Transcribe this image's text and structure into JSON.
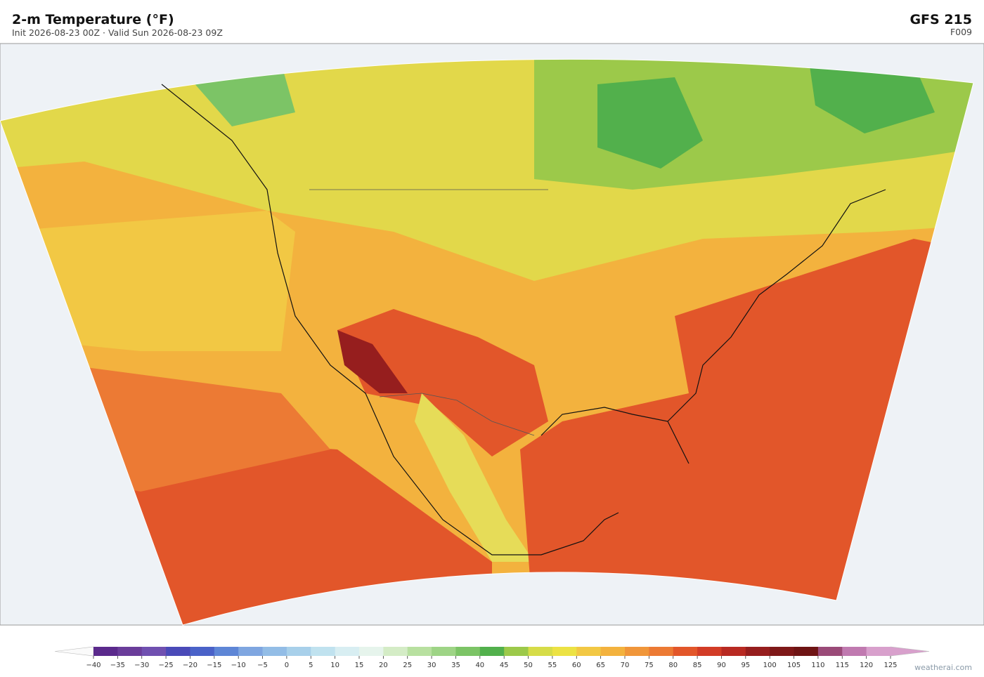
{
  "header": {
    "title": "2-m Temperature  (°F)",
    "subtitle": "Init 2026-08-23 00Z  ·  Valid Sun 2026-08-23 09Z",
    "model": "GFS  215",
    "forecast_hour": "F009"
  },
  "colorbar": {
    "ticks": [
      {
        "value": -40,
        "label": "−40"
      },
      {
        "value": -35,
        "label": "−35"
      },
      {
        "value": -30,
        "label": "−30"
      },
      {
        "value": -25,
        "label": "−25"
      },
      {
        "value": -20,
        "label": "−20"
      },
      {
        "value": -15,
        "label": "−15"
      },
      {
        "value": -10,
        "label": "−10"
      },
      {
        "value": -5,
        "label": "−5"
      },
      0,
      5,
      10,
      15,
      20,
      25,
      30,
      35,
      40,
      45,
      50,
      55,
      60,
      65,
      70,
      75,
      80,
      85,
      90,
      95,
      100,
      105,
      110,
      115,
      120,
      125
    ],
    "colors": [
      "#5b2a8c",
      "#6a3d9a",
      "#7050b0",
      "#4a4ab8",
      "#4a62c8",
      "#5e86d6",
      "#7fa6e0",
      "#93bde6",
      "#a8d0ea",
      "#c0e2ef",
      "#d8eef2",
      "#e6f4ec",
      "#d4ecc6",
      "#b8e0a0",
      "#9ed486",
      "#7cc466",
      "#52b04c",
      "#9cc94a",
      "#d6dc48",
      "#ece244",
      "#f2c844",
      "#f3b23e",
      "#f0963a",
      "#ec7a34",
      "#e2562a",
      "#d23c26",
      "#b82a22",
      "#961e1e",
      "#7e1818",
      "#6e1414",
      "#9a4a78",
      "#c07ab0",
      "#d8a0cc"
    ]
  },
  "footer": {
    "credit": "weatherai.com"
  }
}
